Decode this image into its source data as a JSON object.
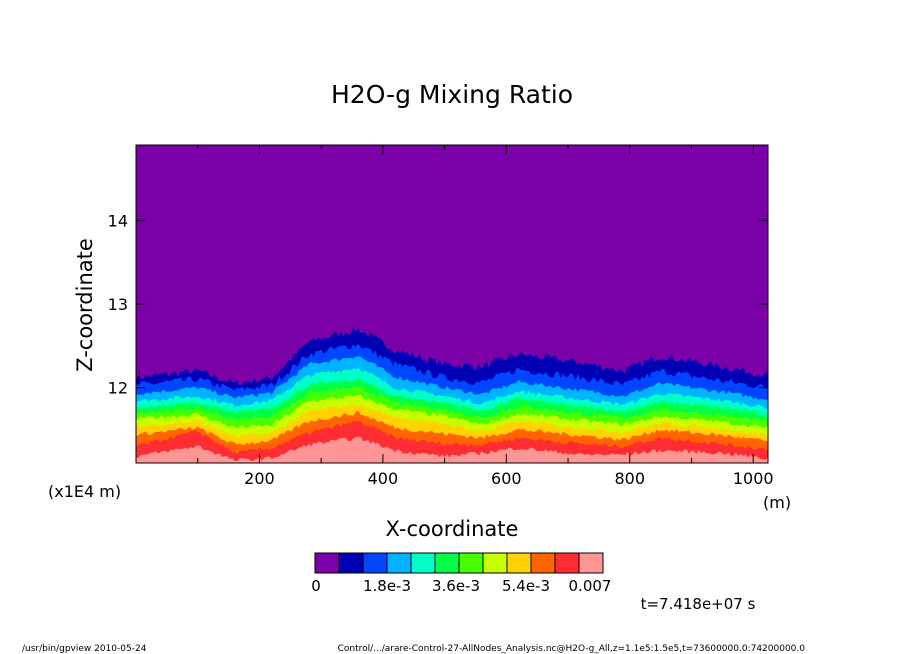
{
  "chart_data": {
    "type": "heatmap",
    "title": "H2O-g Mixing Ratio",
    "xlabel": "X-coordinate",
    "ylabel": "Z-coordinate",
    "x_unit": "(m)",
    "y_unit": "(x1E4 m)",
    "xlim": [
      0,
      1024
    ],
    "ylim": [
      11.1,
      14.9
    ],
    "x_ticks": [
      "200",
      "400",
      "600",
      "800",
      "1000"
    ],
    "y_ticks": [
      "12",
      "13",
      "14"
    ],
    "colorbar": {
      "colors": [
        "#7c00a8",
        "#0000b4",
        "#0046ff",
        "#00b4ff",
        "#00ffc8",
        "#00ff46",
        "#46ff00",
        "#c8ff00",
        "#ffd200",
        "#ff6400",
        "#ff2d32",
        "#ff9696"
      ],
      "labels": [
        "0",
        "1.8e-3",
        "3.6e-3",
        "5.4e-3",
        "0.007"
      ]
    },
    "contour_levels_top_z": [
      {
        "x": 0,
        "z": [
          12.12,
          12.03,
          11.93,
          11.84,
          11.76,
          11.7,
          11.63,
          11.54,
          11.44,
          11.3,
          11.18
        ]
      },
      {
        "x": 100,
        "z": [
          12.2,
          12.1,
          12.0,
          11.9,
          11.82,
          11.75,
          11.68,
          11.6,
          11.52,
          11.48,
          11.3
        ]
      },
      {
        "x": 160,
        "z": [
          12.05,
          11.97,
          11.88,
          11.79,
          11.7,
          11.62,
          11.52,
          11.42,
          11.32,
          11.22,
          11.13
        ]
      },
      {
        "x": 220,
        "z": [
          12.12,
          12.03,
          11.94,
          11.85,
          11.76,
          11.66,
          11.55,
          11.46,
          11.37,
          11.28,
          11.16
        ]
      },
      {
        "x": 280,
        "z": [
          12.55,
          12.4,
          12.28,
          12.15,
          12.03,
          11.94,
          11.84,
          11.72,
          11.6,
          11.46,
          11.32
        ]
      },
      {
        "x": 360,
        "z": [
          12.7,
          12.52,
          12.38,
          12.24,
          12.1,
          12.0,
          11.9,
          11.8,
          11.7,
          11.6,
          11.4
        ]
      },
      {
        "x": 420,
        "z": [
          12.45,
          12.28,
          12.13,
          12.0,
          11.9,
          11.82,
          11.74,
          11.65,
          11.52,
          11.4,
          11.25
        ]
      },
      {
        "x": 500,
        "z": [
          12.28,
          12.12,
          12.0,
          11.9,
          11.82,
          11.74,
          11.66,
          11.57,
          11.45,
          11.33,
          11.18
        ]
      },
      {
        "x": 560,
        "z": [
          12.25,
          12.06,
          11.92,
          11.81,
          11.72,
          11.64,
          11.56,
          11.48,
          11.4,
          11.32,
          11.22
        ]
      },
      {
        "x": 620,
        "z": [
          12.4,
          12.22,
          12.07,
          11.96,
          11.87,
          11.78,
          11.69,
          11.6,
          11.5,
          11.4,
          11.28
        ]
      },
      {
        "x": 720,
        "z": [
          12.3,
          12.12,
          11.97,
          11.86,
          11.77,
          11.69,
          11.61,
          11.52,
          11.43,
          11.33,
          11.2
        ]
      },
      {
        "x": 790,
        "z": [
          12.2,
          12.03,
          11.9,
          11.8,
          11.72,
          11.64,
          11.56,
          11.47,
          11.38,
          11.3,
          11.2
        ]
      },
      {
        "x": 850,
        "z": [
          12.38,
          12.2,
          12.05,
          11.93,
          11.83,
          11.74,
          11.66,
          11.58,
          11.5,
          11.4,
          11.25
        ]
      },
      {
        "x": 950,
        "z": [
          12.25,
          12.08,
          11.95,
          11.85,
          11.76,
          11.67,
          11.59,
          11.51,
          11.43,
          11.33,
          11.22
        ]
      },
      {
        "x": 1024,
        "z": [
          12.15,
          12.0,
          11.86,
          11.76,
          11.68,
          11.6,
          11.52,
          11.44,
          11.36,
          11.26,
          11.15
        ]
      }
    ],
    "time_label": "t=7.418e+07 s"
  },
  "footer": {
    "left": "/usr/bin/gpview   2010-05-24",
    "right": "Control/.../arare-Control-27-AllNodes_Analysis.nc@H2O-g_All,z=1.1e5:1.5e5,t=73600000.0:74200000.0"
  }
}
